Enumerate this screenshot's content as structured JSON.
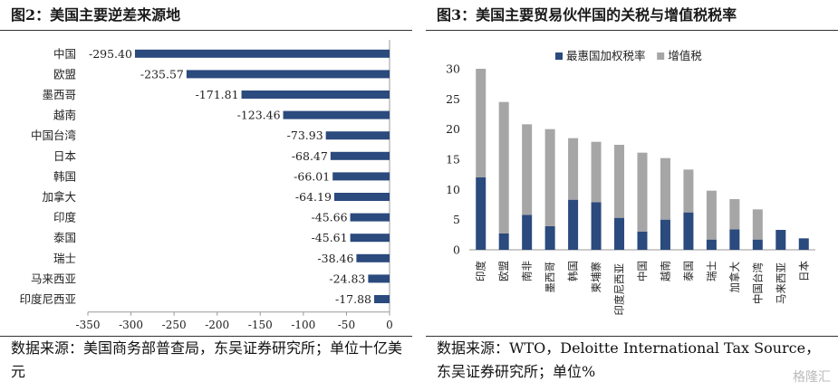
{
  "charts": [
    {
      "panel_title": "图2：美国主要逆差来源地",
      "source": "数据来源：美国商务部普查局，东吴证券研究所；单位十亿美元",
      "chart_data": {
        "type": "bar",
        "orientation": "horizontal",
        "categories": [
          "中国",
          "欧盟",
          "墨西哥",
          "越南",
          "中国台湾",
          "日本",
          "韩国",
          "加拿大",
          "印度",
          "泰国",
          "瑞士",
          "马来西亚",
          "印度尼西亚"
        ],
        "values": [
          -295.4,
          -235.57,
          -171.81,
          -123.46,
          -73.93,
          -68.47,
          -66.01,
          -64.19,
          -45.66,
          -45.61,
          -38.46,
          -24.83,
          -17.88
        ],
        "value_labels": [
          "-295.40",
          "-235.57",
          "-171.81",
          "-123.46",
          "-73.93",
          "-68.47",
          "-66.01",
          "-64.19",
          "-45.66",
          "-45.61",
          "-38.46",
          "-24.83",
          "-17.88"
        ],
        "xlim": [
          -350,
          0
        ],
        "xticks": [
          -350,
          -300,
          -250,
          -200,
          -150,
          -100,
          -50,
          0
        ],
        "color": "#2b4a7d",
        "grid": false
      }
    },
    {
      "panel_title": "图3：美国主要贸易伙伴国的关税与增值税税率",
      "source": "数据来源：WTO，Deloitte International Tax Source，东吴证券研究所；单位%",
      "chart_data": {
        "type": "bar",
        "stacked": true,
        "categories": [
          "印度",
          "欧盟",
          "南非",
          "墨西哥",
          "韩国",
          "柬埔寨",
          "印度尼西亚",
          "中国",
          "越南",
          "泰国",
          "瑞士",
          "加拿大",
          "中国台湾",
          "马来西亚",
          "日本"
        ],
        "series": [
          {
            "name": "最惠国加权税率",
            "color": "#2b4a7d",
            "values": [
              12.0,
              2.7,
              5.8,
              3.9,
              8.3,
              7.9,
              5.3,
              3.0,
              5.0,
              6.2,
              1.7,
              3.4,
              1.7,
              3.3,
              1.9
            ]
          },
          {
            "name": "增值税",
            "color": "#a6a6a6",
            "values": [
              18.0,
              21.8,
              15.0,
              16.1,
              10.2,
              10.0,
              12.1,
              13.1,
              10.2,
              7.1,
              8.1,
              5.0,
              5.0,
              0,
              0
            ]
          }
        ],
        "ylim": [
          0,
          30
        ],
        "yticks": [
          0,
          5,
          10,
          15,
          20,
          25,
          30
        ],
        "legend": "top",
        "grid": false
      }
    }
  ],
  "watermark": "格隆汇"
}
